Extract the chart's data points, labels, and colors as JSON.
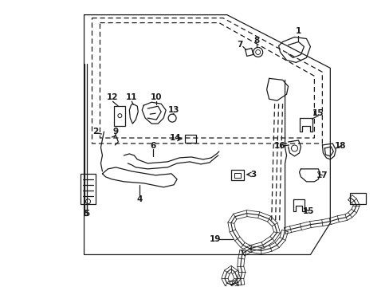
{
  "background_color": "#ffffff",
  "fig_width": 4.89,
  "fig_height": 3.6,
  "dpi": 100,
  "line_color": "#1a1a1a",
  "lw": 0.9
}
